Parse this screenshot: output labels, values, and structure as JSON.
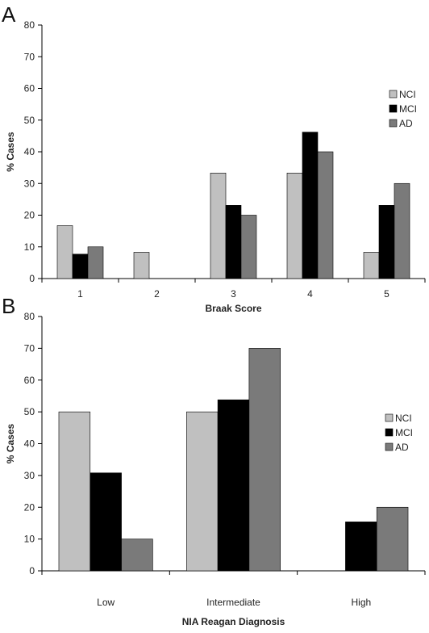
{
  "chart_data": [
    {
      "type": "bar",
      "panel_label": "A",
      "categories": [
        "1",
        "2",
        "3",
        "4",
        "5"
      ],
      "series": [
        {
          "name": "NCI",
          "color": "#c0c0c0",
          "values": [
            16.7,
            8.3,
            33.3,
            33.3,
            8.3
          ]
        },
        {
          "name": "MCI",
          "color": "#000000",
          "values": [
            7.7,
            0,
            23.1,
            46.2,
            23.1
          ]
        },
        {
          "name": "AD",
          "color": "#7a7a7a",
          "values": [
            10,
            0,
            20,
            40,
            30
          ]
        }
      ],
      "xlabel": "Braak Score",
      "ylabel": "% Cases",
      "ylim": [
        0,
        80
      ],
      "yticks": [
        "0",
        "10",
        "20",
        "30",
        "40",
        "50",
        "60",
        "70",
        "80"
      ],
      "grid": false,
      "legend": "right"
    },
    {
      "type": "bar",
      "panel_label": "B",
      "categories": [
        "Low",
        "Intermediate",
        "High"
      ],
      "series": [
        {
          "name": "NCI",
          "color": "#c0c0c0",
          "values": [
            50,
            50,
            0
          ]
        },
        {
          "name": "MCI",
          "color": "#000000",
          "values": [
            30.8,
            53.8,
            15.4
          ]
        },
        {
          "name": "AD",
          "color": "#7a7a7a",
          "values": [
            10,
            70,
            20
          ]
        }
      ],
      "xlabel": "NIA Reagan Diagnosis",
      "ylabel": "% Cases",
      "ylim": [
        0,
        80
      ],
      "yticks": [
        "0",
        "10",
        "20",
        "30",
        "40",
        "50",
        "60",
        "70",
        "80"
      ],
      "grid": false,
      "legend": "right"
    }
  ]
}
